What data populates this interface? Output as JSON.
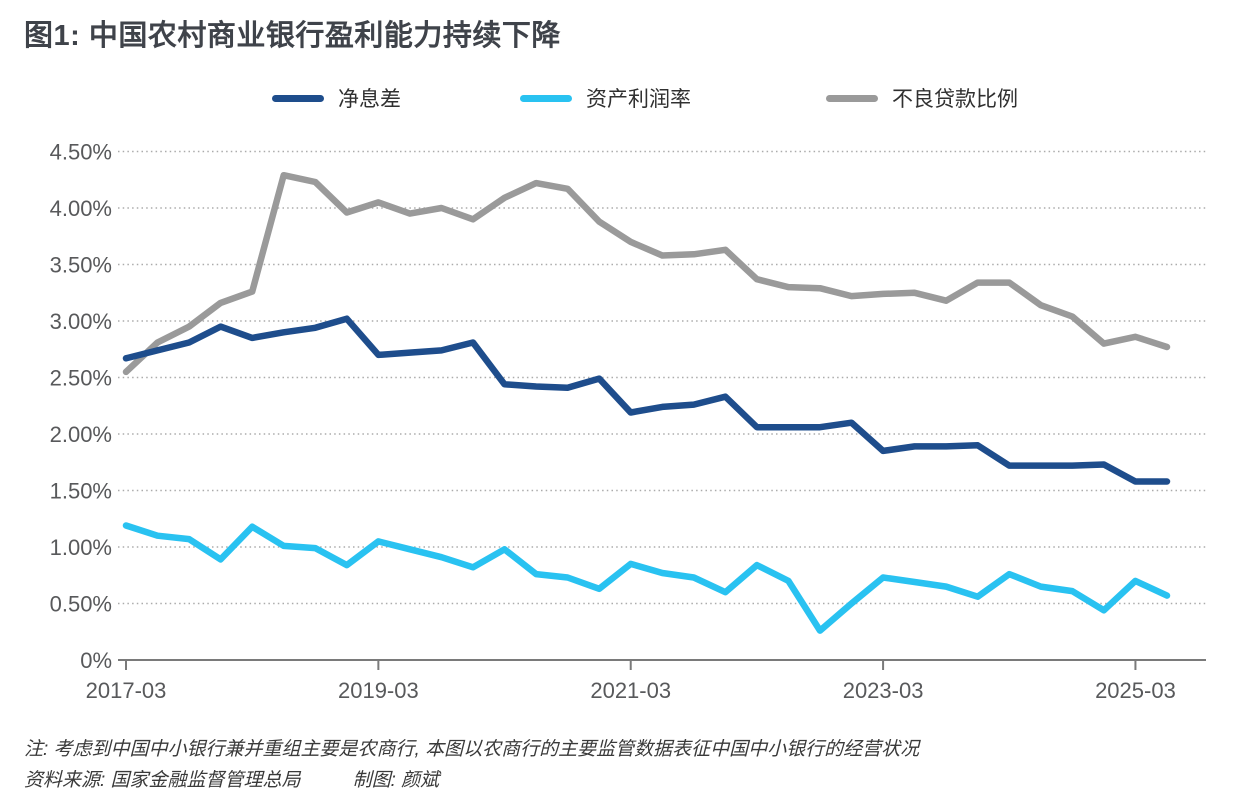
{
  "title": {
    "text": "图1: 中国农村商业银行盈利能力持续下降",
    "color": "#3f434a"
  },
  "legend": {
    "items": [
      {
        "key": "nim",
        "label": "净息差",
        "color": "#1e4d8c"
      },
      {
        "key": "roa",
        "label": "资产利润率",
        "color": "#29c2f1"
      },
      {
        "key": "npl",
        "label": "不良贷款比例",
        "color": "#9a9a9a"
      }
    ]
  },
  "chart_data": {
    "type": "line",
    "x": [
      "2017-03",
      "2017-06",
      "2017-09",
      "2017-12",
      "2018-03",
      "2018-06",
      "2018-09",
      "2018-12",
      "2019-03",
      "2019-06",
      "2019-09",
      "2019-12",
      "2020-03",
      "2020-06",
      "2020-09",
      "2020-12",
      "2021-03",
      "2021-06",
      "2021-09",
      "2021-12",
      "2022-03",
      "2022-06",
      "2022-09",
      "2022-12",
      "2023-03",
      "2023-06",
      "2023-09",
      "2023-12",
      "2024-03",
      "2024-06",
      "2024-09",
      "2024-12",
      "2025-03",
      "2025-06"
    ],
    "series": [
      {
        "key": "nim",
        "name": "净息差",
        "color": "#1e4d8c",
        "unit": "%",
        "values": [
          2.67,
          2.74,
          2.81,
          2.95,
          2.85,
          2.9,
          2.94,
          3.02,
          2.7,
          2.72,
          2.74,
          2.81,
          2.44,
          2.42,
          2.41,
          2.49,
          2.19,
          2.24,
          2.26,
          2.33,
          2.06,
          2.06,
          2.06,
          2.1,
          1.85,
          1.89,
          1.89,
          1.9,
          1.72,
          1.72,
          1.72,
          1.73,
          1.58,
          1.58
        ]
      },
      {
        "key": "roa",
        "name": "资产利润率",
        "color": "#29c2f1",
        "unit": "%",
        "values": [
          1.19,
          1.1,
          1.07,
          0.89,
          1.18,
          1.01,
          0.99,
          0.84,
          1.05,
          0.98,
          0.91,
          0.82,
          0.98,
          0.76,
          0.73,
          0.63,
          0.85,
          0.77,
          0.73,
          0.6,
          0.84,
          0.7,
          0.26,
          0.5,
          0.73,
          0.69,
          0.65,
          0.56,
          0.76,
          0.65,
          0.61,
          0.44,
          0.7,
          0.57
        ]
      },
      {
        "key": "npl",
        "name": "不良贷款比例",
        "color": "#9a9a9a",
        "unit": "%",
        "values": [
          2.55,
          2.81,
          2.95,
          3.16,
          3.26,
          4.29,
          4.23,
          3.96,
          4.05,
          3.95,
          4.0,
          3.9,
          4.09,
          4.22,
          4.17,
          3.88,
          3.7,
          3.58,
          3.59,
          3.63,
          3.37,
          3.3,
          3.29,
          3.22,
          3.24,
          3.25,
          3.18,
          3.34,
          3.34,
          3.14,
          3.04,
          2.8,
          2.86,
          2.77
        ]
      }
    ],
    "ylim": [
      0,
      4.5
    ],
    "yticks": [
      {
        "value": 0.0,
        "label": "0%"
      },
      {
        "value": 0.5,
        "label": "0.50%"
      },
      {
        "value": 1.0,
        "label": "1.00%"
      },
      {
        "value": 1.5,
        "label": "1.50%"
      },
      {
        "value": 2.0,
        "label": "2.00%"
      },
      {
        "value": 2.5,
        "label": "2.50%"
      },
      {
        "value": 3.0,
        "label": "3.00%"
      },
      {
        "value": 3.5,
        "label": "3.50%"
      },
      {
        "value": 4.0,
        "label": "4.00%"
      },
      {
        "value": 4.5,
        "label": "4.50%"
      }
    ],
    "xticks": [
      {
        "index": 0,
        "label": "2017-03"
      },
      {
        "index": 8,
        "label": "2019-03"
      },
      {
        "index": 16,
        "label": "2021-03"
      },
      {
        "index": 24,
        "label": "2023-03"
      },
      {
        "index": 32,
        "label": "2025-03"
      }
    ],
    "grid": {
      "horizontal": "dotted",
      "color": "#ababab"
    },
    "axis": {
      "line_color": "#7a7a7a",
      "label_color": "#58595b"
    },
    "legend_position": "top"
  },
  "notes": {
    "line1": "注: 考虑到中国中小银行兼并重组主要是农商行, 本图以农商行的主要监管数据表征中国中小银行的经营状况",
    "source": "资料来源: 国家金融监督管理总局",
    "credit": "制图: 颜斌"
  }
}
